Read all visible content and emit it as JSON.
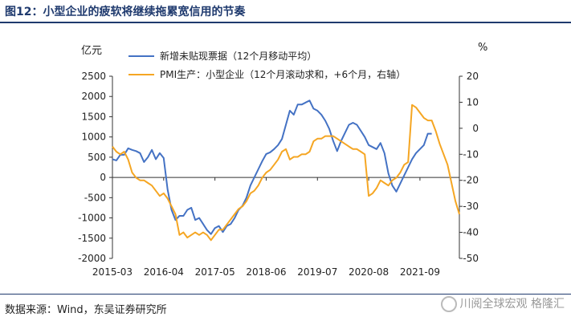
{
  "figure_title": "图12：小型企业的疲软将继续拖累宽信用的节奏",
  "left_unit": "亿元",
  "right_unit": "%",
  "source": "数据来源：Wind，东吴证券研究所",
  "watermark": "川阅全球宏观 格隆汇",
  "colors": {
    "series1": "#4472C4",
    "series2": "#F5A623",
    "title": "#1f3a6e"
  },
  "chart_data": {
    "type": "line",
    "x_ticks": [
      "2015-03",
      "2016-04",
      "2017-05",
      "2018-06",
      "2019-07",
      "2020-08",
      "2021-09"
    ],
    "left_axis": {
      "label": "亿元",
      "range": [
        -2000,
        2500
      ],
      "ticks": [
        2500,
        2000,
        1500,
        1000,
        500,
        0,
        -500,
        -1000,
        -1500,
        -2000
      ]
    },
    "right_axis": {
      "label": "%",
      "range": [
        -50,
        20
      ],
      "ticks": [
        20,
        10,
        0,
        -10,
        -20,
        -30,
        -40,
        -50
      ]
    },
    "legend_position": "top-left",
    "grid": false,
    "series": [
      {
        "name": "新增未贴现票据（12个月移动平均）",
        "axis": "left",
        "points": [
          [
            "2015-03",
            450
          ],
          [
            "2015-04",
            420
          ],
          [
            "2015-05",
            560
          ],
          [
            "2015-06",
            560
          ],
          [
            "2015-07",
            720
          ],
          [
            "2015-08",
            680
          ],
          [
            "2015-09",
            650
          ],
          [
            "2015-10",
            600
          ],
          [
            "2015-11",
            380
          ],
          [
            "2015-12",
            500
          ],
          [
            "2016-01",
            680
          ],
          [
            "2016-02",
            450
          ],
          [
            "2016-03",
            600
          ],
          [
            "2016-04",
            480
          ],
          [
            "2016-05",
            -300
          ],
          [
            "2016-06",
            -800
          ],
          [
            "2016-07",
            -1050
          ],
          [
            "2016-08",
            -950
          ],
          [
            "2016-09",
            -950
          ],
          [
            "2016-10",
            -800
          ],
          [
            "2016-11",
            -750
          ],
          [
            "2016-12",
            -1050
          ],
          [
            "2017-01",
            -1000
          ],
          [
            "2017-02",
            -1150
          ],
          [
            "2017-03",
            -1300
          ],
          [
            "2017-04",
            -1400
          ],
          [
            "2017-05",
            -1250
          ],
          [
            "2017-06",
            -1200
          ],
          [
            "2017-07",
            -1350
          ],
          [
            "2017-08",
            -1200
          ],
          [
            "2017-09",
            -1150
          ],
          [
            "2017-10",
            -1000
          ],
          [
            "2017-11",
            -800
          ],
          [
            "2017-12",
            -700
          ],
          [
            "2018-01",
            -500
          ],
          [
            "2018-02",
            -200
          ],
          [
            "2018-03",
            0
          ],
          [
            "2018-04",
            200
          ],
          [
            "2018-05",
            400
          ],
          [
            "2018-06",
            580
          ],
          [
            "2018-07",
            620
          ],
          [
            "2018-08",
            700
          ],
          [
            "2018-09",
            800
          ],
          [
            "2018-10",
            950
          ],
          [
            "2018-11",
            1300
          ],
          [
            "2018-12",
            1650
          ],
          [
            "2019-01",
            1550
          ],
          [
            "2019-02",
            1800
          ],
          [
            "2019-03",
            1800
          ],
          [
            "2019-04",
            1850
          ],
          [
            "2019-05",
            1900
          ],
          [
            "2019-06",
            1700
          ],
          [
            "2019-07",
            1650
          ],
          [
            "2019-08",
            1550
          ],
          [
            "2019-09",
            1400
          ],
          [
            "2019-10",
            1200
          ],
          [
            "2019-11",
            900
          ],
          [
            "2019-12",
            650
          ],
          [
            "2020-01",
            900
          ],
          [
            "2020-02",
            1100
          ],
          [
            "2020-03",
            1300
          ],
          [
            "2020-04",
            1350
          ],
          [
            "2020-05",
            1300
          ],
          [
            "2020-06",
            1150
          ],
          [
            "2020-07",
            1000
          ],
          [
            "2020-08",
            800
          ],
          [
            "2020-09",
            750
          ],
          [
            "2020-10",
            700
          ],
          [
            "2020-11",
            850
          ],
          [
            "2020-12",
            600
          ],
          [
            "2021-01",
            100
          ],
          [
            "2021-02",
            -200
          ],
          [
            "2021-03",
            -350
          ],
          [
            "2021-04",
            -150
          ],
          [
            "2021-05",
            50
          ],
          [
            "2021-06",
            250
          ],
          [
            "2021-07",
            450
          ],
          [
            "2021-08",
            600
          ],
          [
            "2021-09",
            700
          ],
          [
            "2021-10",
            800
          ],
          [
            "2021-11",
            1080
          ],
          [
            "2021-12",
            1080
          ]
        ]
      },
      {
        "name": "PMI生产：小型企业（12个月滚动求和，+6个月，右轴）",
        "axis": "right",
        "points": [
          [
            "2015-03",
            -7
          ],
          [
            "2015-04",
            -9
          ],
          [
            "2015-05",
            -10
          ],
          [
            "2015-06",
            -9
          ],
          [
            "2015-07",
            -12
          ],
          [
            "2015-08",
            -17
          ],
          [
            "2015-09",
            -19
          ],
          [
            "2015-10",
            -20
          ],
          [
            "2015-11",
            -20
          ],
          [
            "2015-12",
            -21
          ],
          [
            "2016-01",
            -22
          ],
          [
            "2016-02",
            -24
          ],
          [
            "2016-03",
            -26
          ],
          [
            "2016-04",
            -25
          ],
          [
            "2016-05",
            -27
          ],
          [
            "2016-06",
            -30
          ],
          [
            "2016-07",
            -33
          ],
          [
            "2016-08",
            -41
          ],
          [
            "2016-09",
            -40
          ],
          [
            "2016-10",
            -42
          ],
          [
            "2016-11",
            -41
          ],
          [
            "2016-12",
            -40
          ],
          [
            "2017-01",
            -41
          ],
          [
            "2017-02",
            -40
          ],
          [
            "2017-03",
            -41
          ],
          [
            "2017-04",
            -43
          ],
          [
            "2017-05",
            -41
          ],
          [
            "2017-06",
            -39
          ],
          [
            "2017-07",
            -39
          ],
          [
            "2017-08",
            -37
          ],
          [
            "2017-09",
            -35
          ],
          [
            "2017-10",
            -33
          ],
          [
            "2017-11",
            -31
          ],
          [
            "2017-12",
            -30
          ],
          [
            "2018-01",
            -28
          ],
          [
            "2018-02",
            -25
          ],
          [
            "2018-03",
            -24
          ],
          [
            "2018-04",
            -22
          ],
          [
            "2018-05",
            -19
          ],
          [
            "2018-06",
            -17
          ],
          [
            "2018-07",
            -16
          ],
          [
            "2018-08",
            -14
          ],
          [
            "2018-09",
            -12
          ],
          [
            "2018-10",
            -9
          ],
          [
            "2018-11",
            -8
          ],
          [
            "2018-12",
            -12
          ],
          [
            "2019-01",
            -11
          ],
          [
            "2019-02",
            -11
          ],
          [
            "2019-03",
            -10
          ],
          [
            "2019-04",
            -10
          ],
          [
            "2019-05",
            -9
          ],
          [
            "2019-06",
            -5
          ],
          [
            "2019-07",
            -4
          ],
          [
            "2019-08",
            -4
          ],
          [
            "2019-09",
            -3
          ],
          [
            "2019-10",
            -3
          ],
          [
            "2019-11",
            -3
          ],
          [
            "2019-12",
            -4
          ],
          [
            "2020-01",
            -5
          ],
          [
            "2020-02",
            -6
          ],
          [
            "2020-03",
            -7
          ],
          [
            "2020-04",
            -8
          ],
          [
            "2020-05",
            -8
          ],
          [
            "2020-06",
            -9
          ],
          [
            "2020-07",
            -10
          ],
          [
            "2020-08",
            -26
          ],
          [
            "2020-09",
            -25
          ],
          [
            "2020-10",
            -23
          ],
          [
            "2020-11",
            -20
          ],
          [
            "2020-12",
            -21
          ],
          [
            "2021-01",
            -22
          ],
          [
            "2021-02",
            -20
          ],
          [
            "2021-03",
            -19
          ],
          [
            "2021-04",
            -17
          ],
          [
            "2021-05",
            -14
          ],
          [
            "2021-06",
            -13
          ],
          [
            "2021-07",
            9
          ],
          [
            "2021-08",
            8
          ],
          [
            "2021-09",
            6
          ],
          [
            "2021-10",
            4
          ],
          [
            "2021-11",
            3
          ],
          [
            "2021-12",
            3
          ],
          [
            "2022-01",
            -1
          ],
          [
            "2022-02",
            -6
          ],
          [
            "2022-03",
            -10
          ],
          [
            "2022-04",
            -14
          ],
          [
            "2022-05",
            -21
          ],
          [
            "2022-06",
            -28
          ],
          [
            "2022-07",
            -33
          ]
        ]
      }
    ]
  }
}
